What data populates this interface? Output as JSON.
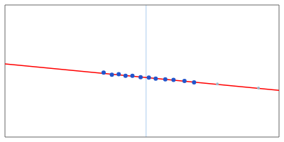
{
  "chart_data": {
    "type": "scatter",
    "xlim": [
      -1.0,
      1.0
    ],
    "ylim": [
      -0.25,
      0.4
    ],
    "tick_labels": false,
    "series": [
      {
        "type": "line",
        "color": "#ff0000",
        "x": [
          -1.0,
          1.0
        ],
        "values": [
          0.11,
          -0.02
        ]
      },
      {
        "type": "scatter",
        "color": "#2255cc",
        "marker": "large",
        "x": [
          -0.28,
          -0.22,
          -0.17,
          -0.12,
          -0.07,
          -0.01,
          0.05,
          0.1,
          0.17,
          0.23,
          0.31,
          0.38
        ],
        "values": [
          0.0672,
          0.0563,
          0.05905,
          0.0518,
          0.05155,
          0.04465,
          0.04275,
          0.0375,
          0.03395,
          0.03105,
          0.02585,
          0.0193
        ]
      },
      {
        "type": "scatter",
        "color": "#99bbcc",
        "marker": "small",
        "x": [
          0.55,
          0.85
        ],
        "values": [
          0.01125,
          -0.00925
        ]
      }
    ],
    "vlines": [
      {
        "x": 0.03,
        "color": "#aaccee"
      }
    ]
  }
}
